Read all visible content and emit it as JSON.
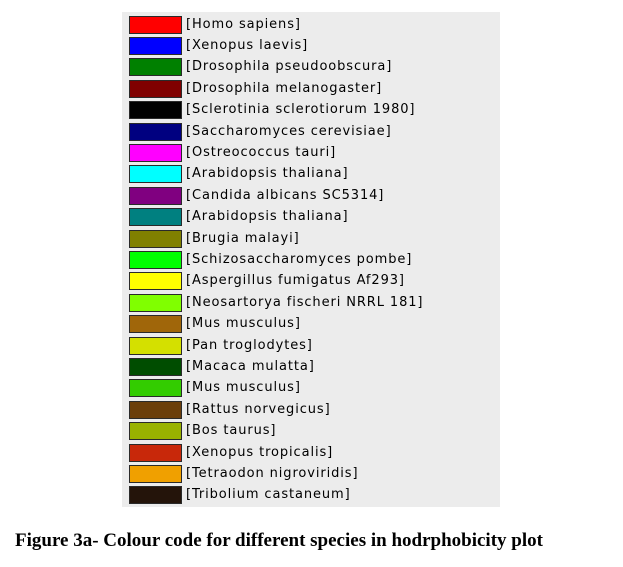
{
  "legend": {
    "items": [
      {
        "label": "[Homo sapiens]",
        "color": "#ff0000"
      },
      {
        "label": "[Xenopus laevis]",
        "color": "#0000ff"
      },
      {
        "label": "[Drosophila pseudoobscura]",
        "color": "#008000"
      },
      {
        "label": "[Drosophila melanogaster]",
        "color": "#800000"
      },
      {
        "label": "[Sclerotinia sclerotiorum 1980]",
        "color": "#000000"
      },
      {
        "label": "[Saccharomyces cerevisiae]",
        "color": "#000080"
      },
      {
        "label": "[Ostreococcus tauri]",
        "color": "#ff00ff"
      },
      {
        "label": "[Arabidopsis thaliana]",
        "color": "#00ffff"
      },
      {
        "label": "[Candida albicans SC5314]",
        "color": "#800080"
      },
      {
        "label": "[Arabidopsis thaliana]",
        "color": "#008080"
      },
      {
        "label": "[Brugia malayi]",
        "color": "#808000"
      },
      {
        "label": "[Schizosaccharomyces pombe]",
        "color": "#00ff00"
      },
      {
        "label": "[Aspergillus fumigatus Af293]",
        "color": "#ffff00"
      },
      {
        "label": "[Neosartorya fischeri NRRL 181]",
        "color": "#80ff00"
      },
      {
        "label": "[Mus musculus]",
        "color": "#a0660a"
      },
      {
        "label": "[Pan troglodytes]",
        "color": "#d4e000"
      },
      {
        "label": "[Macaca mulatta]",
        "color": "#004d00"
      },
      {
        "label": "[Mus musculus]",
        "color": "#33cc00"
      },
      {
        "label": "[Rattus norvegicus]",
        "color": "#6b3e0a"
      },
      {
        "label": "[Bos taurus]",
        "color": "#99b200"
      },
      {
        "label": "[Xenopus tropicalis]",
        "color": "#c8280a"
      },
      {
        "label": "[Tetraodon nigroviridis]",
        "color": "#f0a000"
      },
      {
        "label": "[Tribolium castaneum]",
        "color": "#24140a"
      }
    ]
  },
  "caption": "Figure 3a- Colour code for different species in hodrphobicity plot"
}
